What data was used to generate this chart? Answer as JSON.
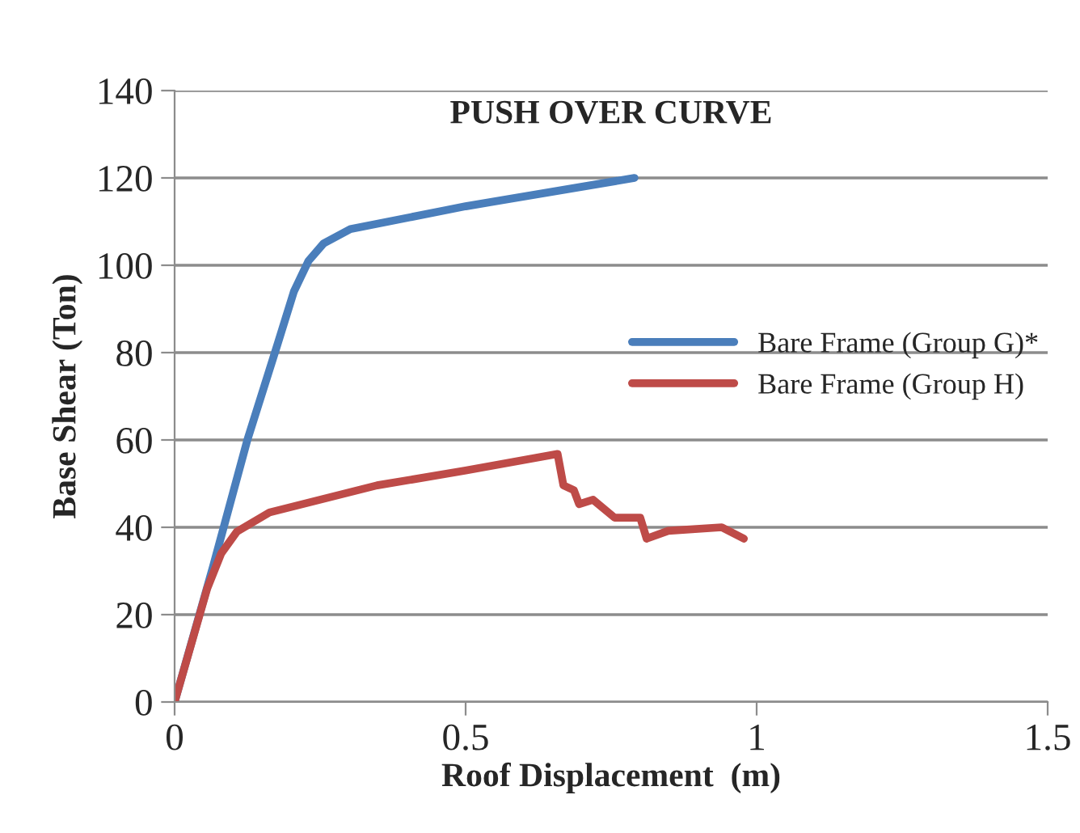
{
  "chart_data": {
    "type": "line",
    "title": "PUSH OVER CURVE",
    "xlabel": "Roof Displacement  (m)",
    "ylabel": "Base Shear (Ton)",
    "xlim": [
      0,
      1.5
    ],
    "xticks": [
      0,
      0.5,
      1,
      1.5
    ],
    "ylim": [
      0,
      140
    ],
    "yticks": [
      0,
      20,
      40,
      60,
      80,
      100,
      120,
      140
    ],
    "grid": "y",
    "legend": "right",
    "marker": "none",
    "line_style": "solid",
    "series": [
      {
        "name": "Bare Frame (Group G)*",
        "color": "#4a7ebb",
        "x": [
          0,
          0.066,
          0.125,
          0.177,
          0.205,
          0.23,
          0.256,
          0.302,
          0.5,
          0.79
        ],
        "values": [
          0,
          31,
          60,
          82,
          94,
          101,
          105,
          108.3,
          113.5,
          120
        ]
      },
      {
        "name": "Bare Frame (Group H)",
        "color": "#be4b48",
        "x": [
          0,
          0.056,
          0.08,
          0.107,
          0.163,
          0.348,
          0.5,
          0.658,
          0.668,
          0.686,
          0.695,
          0.719,
          0.756,
          0.8,
          0.811,
          0.848,
          0.94,
          0.978
        ],
        "values": [
          0,
          26,
          34,
          39,
          43.4,
          49.6,
          53,
          56.8,
          49.6,
          48.5,
          45.3,
          46.3,
          42.2,
          42.2,
          37.4,
          39.2,
          40,
          37.4
        ]
      }
    ]
  }
}
